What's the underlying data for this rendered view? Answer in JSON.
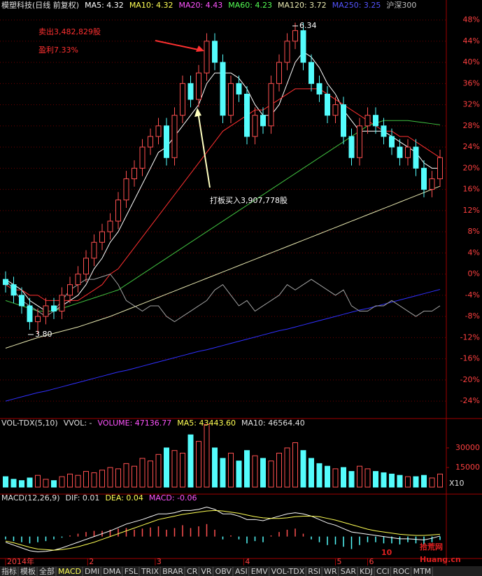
{
  "chart_data": [
    {
      "type": "candlestick",
      "header": [
        {
          "text": "模塑科技(日线 前复权)",
          "color": "#e0e0e0"
        },
        {
          "text": "MA5: 4.32",
          "color": "#ffffff"
        },
        {
          "text": "MA10: 4.32",
          "color": "#ffff54"
        },
        {
          "text": "MA20: 4.43",
          "color": "#ff54ff"
        },
        {
          "text": "MA60: 4.23",
          "color": "#54ff54"
        },
        {
          "text": "MA120: 3.72",
          "color": "#e8e8b0"
        },
        {
          "text": "MA250: 3.25",
          "color": "#5454ff"
        },
        {
          "text": "沪深300",
          "color": "#c0c0c0"
        }
      ],
      "ylim": [
        -26.5,
        49.4
      ],
      "yticks": [
        {
          "value": 48,
          "label": "48%"
        },
        {
          "value": 44,
          "label": "44%"
        },
        {
          "value": 40,
          "label": "40%"
        },
        {
          "value": 36,
          "label": "36%"
        },
        {
          "value": 32,
          "label": "32%"
        },
        {
          "value": 28,
          "label": "28%"
        },
        {
          "value": 24,
          "label": "24%"
        },
        {
          "value": 20,
          "label": "20%"
        },
        {
          "value": 16,
          "label": "16%"
        },
        {
          "value": 12,
          "label": "12%"
        },
        {
          "value": 8,
          "label": "8%"
        },
        {
          "value": 4,
          "label": "4%"
        },
        {
          "value": 0,
          "label": "0%"
        },
        {
          "value": -4,
          "label": "-4%"
        },
        {
          "value": -8,
          "label": "-8%"
        },
        {
          "value": -12,
          "label": "-12%"
        },
        {
          "value": -16,
          "label": "-16%"
        },
        {
          "value": -20,
          "label": "-20%"
        },
        {
          "value": -24,
          "label": "-24%"
        }
      ],
      "xticks": [
        {
          "value": 0,
          "label": "2014年"
        },
        {
          "value": 10.2,
          "label": "2"
        },
        {
          "value": 18.6,
          "label": "3"
        },
        {
          "value": 29.6,
          "label": "4"
        },
        {
          "value": 41,
          "label": "5"
        },
        {
          "value": 45,
          "label": "6"
        }
      ],
      "grid": true,
      "up_color": "#ff5050",
      "down_color": "#54fcfc",
      "open": [
        -1,
        -2,
        -4,
        -6,
        -9,
        -8,
        -6,
        -7,
        -4,
        -2,
        0,
        3,
        6,
        8,
        10,
        14,
        18,
        20,
        24,
        26,
        28,
        22,
        30,
        36,
        33,
        38,
        44,
        40,
        30,
        36,
        34,
        26,
        30,
        28,
        36,
        40,
        44,
        46,
        40,
        36,
        34,
        30,
        32,
        26,
        22,
        28,
        30,
        28,
        26,
        24,
        22,
        24,
        20,
        16,
        18
      ],
      "close": [
        -2,
        -4,
        -6,
        -9,
        -8,
        -6,
        -7,
        -4,
        -2,
        0,
        3,
        6,
        8,
        10,
        14,
        18,
        20,
        24,
        26,
        28,
        22,
        30,
        36,
        33,
        38,
        44,
        40,
        30,
        36,
        34,
        26,
        30,
        28,
        36,
        40,
        44,
        46,
        40,
        36,
        34,
        30,
        32,
        26,
        22,
        28,
        30,
        28,
        26,
        24,
        22,
        24,
        20,
        16,
        18,
        22
      ],
      "high": [
        0.5,
        -0.5,
        -2.5,
        -4.5,
        -6.5,
        -4.5,
        -4.5,
        -2.5,
        -0.5,
        1.5,
        4.5,
        7.5,
        9.5,
        11.5,
        15.5,
        19.5,
        21.5,
        25.5,
        27.5,
        29.5,
        29.5,
        31.5,
        37.5,
        37.5,
        39.5,
        45.5,
        45.5,
        41.5,
        37.5,
        37.5,
        35.5,
        31.5,
        31.5,
        37.5,
        41.5,
        45.5,
        47.5,
        47.5,
        41.5,
        37.5,
        35.5,
        33.5,
        33.5,
        27.5,
        29.5,
        31.5,
        31.5,
        29.5,
        27.5,
        25.5,
        25.5,
        25.5,
        21.5,
        19.5,
        23.5
      ],
      "low": [
        -3.5,
        -5.5,
        -7.5,
        -10.5,
        -11.4,
        -9.5,
        -8.5,
        -8.5,
        -5.5,
        -3.5,
        -1.5,
        1.5,
        4.5,
        6.5,
        8.5,
        12.5,
        16.5,
        18.5,
        22.5,
        24.5,
        20.5,
        20.5,
        28.5,
        31.5,
        31.5,
        36.5,
        38.5,
        28.5,
        28.5,
        32.5,
        24.5,
        24.5,
        26.5,
        26.5,
        34.5,
        38.5,
        42.5,
        38.5,
        34.5,
        32.5,
        28.5,
        28.5,
        24.5,
        20.5,
        20.5,
        26.5,
        26.5,
        24.5,
        22.5,
        20.5,
        20.5,
        18.5,
        14.5,
        14.5,
        16.5
      ],
      "lines": [
        {
          "color": "#ffffff",
          "values": [
            -1,
            -2,
            -3,
            -5,
            -6,
            -7,
            -7,
            -6,
            -5,
            -4,
            -2,
            1,
            3,
            6,
            8,
            11,
            14,
            17,
            20,
            23,
            24,
            26,
            28,
            30,
            32,
            36,
            38,
            38,
            38,
            37,
            35,
            32,
            30,
            30,
            32,
            36,
            40,
            42,
            41,
            39,
            36,
            34,
            31,
            29,
            27,
            27,
            27,
            27,
            26,
            25,
            24,
            23,
            21,
            20,
            20
          ]
        },
        {
          "color": "#ff3030",
          "values": [
            -2,
            -3,
            -3,
            -4,
            -4,
            -5,
            -5,
            -5,
            -5,
            -5,
            -4,
            -3,
            -2,
            0,
            1,
            3,
            5,
            7,
            9,
            11,
            13,
            15,
            17,
            19,
            21,
            23,
            25,
            27,
            28,
            29,
            30,
            31,
            31,
            32,
            33,
            34,
            35,
            35,
            35,
            35,
            34,
            33,
            32,
            31,
            30,
            29,
            28,
            27,
            27,
            26,
            26,
            25,
            24,
            23,
            22
          ]
        },
        {
          "color": "#40c040",
          "values": [
            -5,
            -5.5,
            -6,
            -6.5,
            -7,
            -7,
            -7,
            -6.5,
            -6,
            -5.5,
            -5,
            -4.5,
            -4,
            -3.5,
            -3,
            -2,
            -1,
            0,
            1,
            2,
            3,
            4,
            5,
            6,
            7,
            8,
            9,
            10,
            11,
            12,
            13,
            14,
            15,
            16,
            17,
            18,
            19,
            20,
            21,
            22,
            23,
            24,
            25,
            26,
            27,
            28,
            28.5,
            29,
            29,
            29,
            29,
            28.8,
            28.6,
            28.4,
            28.2
          ]
        },
        {
          "color": "#e8e8b0",
          "values": [
            -14,
            -13.5,
            -13,
            -12.5,
            -12,
            -11.6,
            -11.2,
            -10.8,
            -10.4,
            -10,
            -9.5,
            -9,
            -8.5,
            -8,
            -7.4,
            -6.8,
            -6.2,
            -5.6,
            -5,
            -4.4,
            -3.8,
            -3.2,
            -2.6,
            -2,
            -1.4,
            -0.8,
            -0.2,
            0.4,
            1,
            1.6,
            2.2,
            2.8,
            3.4,
            4,
            4.6,
            5.2,
            5.8,
            6.4,
            7,
            7.6,
            8.2,
            8.8,
            9.4,
            10,
            10.6,
            11.2,
            11.8,
            12.4,
            13,
            13.6,
            14.2,
            14.8,
            15.4,
            16,
            16.6
          ]
        },
        {
          "color": "#3030ff",
          "values": [
            -24,
            -23.6,
            -23.2,
            -22.8,
            -22.4,
            -22.1,
            -21.7,
            -21.3,
            -20.9,
            -20.5,
            -20.1,
            -19.7,
            -19.3,
            -18.9,
            -18.5,
            -18.2,
            -17.8,
            -17.4,
            -17,
            -16.6,
            -16.2,
            -15.8,
            -15.4,
            -15,
            -14.6,
            -14.3,
            -13.9,
            -13.5,
            -13.1,
            -12.7,
            -12.3,
            -11.9,
            -11.5,
            -11.1,
            -10.7,
            -10.4,
            -10,
            -9.6,
            -9.2,
            -8.8,
            -8.4,
            -8,
            -7.6,
            -7.2,
            -6.8,
            -6.5,
            -6.1,
            -5.7,
            -5.3,
            -4.9,
            -4.5,
            -4.1,
            -3.7,
            -3.3,
            -2.9
          ]
        },
        {
          "color": "#a0a0a0",
          "values": [
            -1,
            -3,
            -5,
            -6,
            -7,
            -8,
            -7,
            -5,
            -3,
            -2,
            -1,
            -1,
            -0.5,
            0,
            -2,
            -5,
            -6,
            -7,
            -6,
            -6,
            -8,
            -9,
            -8,
            -7,
            -6,
            -5,
            -3,
            -2,
            -4,
            -6,
            -5,
            -7,
            -6,
            -5,
            -4,
            -2,
            -3,
            -2,
            -1,
            -2,
            -3,
            -4,
            -3,
            -6,
            -7,
            -7,
            -6,
            -6,
            -5,
            -6,
            -7,
            -8,
            -7,
            -7,
            -6
          ]
        }
      ],
      "annotations": [
        {
          "text": "卖出3,482,829股",
          "color": "#ff3030"
        },
        {
          "text": "盈利7.33%",
          "color": "#ff3030"
        },
        {
          "text": "打板买入3,907,778股",
          "color": "#ffffff"
        },
        {
          "text": "6.34",
          "color": "#ffffff"
        },
        {
          "text": "3.80",
          "color": "#ffffff"
        }
      ]
    },
    {
      "type": "bar",
      "header": [
        {
          "text": "VOL-TDX(5,10)",
          "color": "#e0e0e0"
        },
        {
          "text": "VVOL: -",
          "color": "#e0e0e0"
        },
        {
          "text": "VOLUME: 47136.77",
          "color": "#ff54ff"
        },
        {
          "text": "MA5: 43443.60",
          "color": "#ffff54"
        },
        {
          "text": "MA10: 46564.40",
          "color": "#e0e0e0"
        }
      ],
      "ylim": [
        0,
        51400
      ],
      "yticks": [
        30000,
        15000
      ],
      "unit_label": "X10",
      "values": [
        8000,
        6000,
        5000,
        7000,
        9000,
        6000,
        5000,
        8000,
        10000,
        9000,
        12000,
        11000,
        13000,
        15000,
        14000,
        18000,
        16000,
        22000,
        20000,
        25000,
        30000,
        28000,
        26000,
        40000,
        35000,
        48000,
        30000,
        22000,
        26000,
        20000,
        28000,
        24000,
        22000,
        20000,
        26000,
        30000,
        34000,
        28000,
        22000,
        18000,
        16000,
        14000,
        15000,
        12000,
        16000,
        14000,
        12000,
        11000,
        10000,
        9000,
        8000,
        8000,
        9000,
        7000,
        10000
      ]
    },
    {
      "type": "macd",
      "header": [
        {
          "text": "MACD(12,26,9)",
          "color": "#e0e0e0"
        },
        {
          "text": "DIF: 0.01",
          "color": "#e0e0e0"
        },
        {
          "text": "DEA: 0.04",
          "color": "#ffff54"
        },
        {
          "text": "MACD: -0.06",
          "color": "#ff54ff"
        }
      ],
      "ylim": [
        -0.35,
        0.6
      ],
      "histogram": [
        -0.05,
        -0.08,
        -0.1,
        -0.12,
        -0.1,
        -0.08,
        -0.05,
        -0.02,
        0.02,
        0.05,
        0.08,
        0.1,
        0.1,
        0.12,
        0.14,
        0.15,
        0.12,
        0.14,
        0.16,
        0.18,
        0.12,
        0.15,
        0.2,
        0.15,
        0.18,
        0.22,
        0.12,
        -0.05,
        0.02,
        -0.05,
        -0.12,
        -0.08,
        -0.1,
        0.02,
        0.08,
        0.12,
        0.14,
        0.05,
        -0.05,
        -0.1,
        -0.15,
        -0.14,
        -0.18,
        -0.22,
        -0.15,
        -0.1,
        -0.1,
        -0.12,
        -0.12,
        -0.14,
        -0.1,
        -0.12,
        -0.15,
        -0.1,
        -0.06
      ],
      "dif": [
        -0.1,
        -0.15,
        -0.2,
        -0.25,
        -0.27,
        -0.26,
        -0.24,
        -0.2,
        -0.15,
        -0.1,
        -0.05,
        0,
        0.05,
        0.1,
        0.16,
        0.22,
        0.26,
        0.3,
        0.35,
        0.4,
        0.4,
        0.42,
        0.46,
        0.46,
        0.48,
        0.52,
        0.48,
        0.4,
        0.4,
        0.36,
        0.3,
        0.3,
        0.28,
        0.32,
        0.36,
        0.4,
        0.42,
        0.4,
        0.36,
        0.3,
        0.24,
        0.2,
        0.14,
        0.08,
        0.06,
        0.04,
        0.02,
        0,
        -0.02,
        -0.04,
        -0.04,
        -0.05,
        -0.06,
        -0.03,
        0.01
      ],
      "dea": [
        -0.08,
        -0.11,
        -0.15,
        -0.19,
        -0.22,
        -0.23,
        -0.24,
        -0.23,
        -0.21,
        -0.18,
        -0.14,
        -0.1,
        -0.05,
        0,
        0.05,
        0.1,
        0.15,
        0.2,
        0.25,
        0.3,
        0.33,
        0.36,
        0.39,
        0.41,
        0.43,
        0.45,
        0.46,
        0.45,
        0.43,
        0.41,
        0.38,
        0.35,
        0.33,
        0.32,
        0.32,
        0.33,
        0.35,
        0.36,
        0.36,
        0.35,
        0.32,
        0.29,
        0.25,
        0.21,
        0.17,
        0.13,
        0.1,
        0.08,
        0.06,
        0.04,
        0.03,
        0.02,
        0.02,
        0.03,
        0.04
      ]
    }
  ],
  "tabs": [
    "指标",
    "模板",
    "全部",
    "MACD",
    "DMI",
    "DMA",
    "FSL",
    "TRIX",
    "BRAR",
    "CR",
    "VR",
    "OBV",
    "ASI",
    "EMV",
    "VOL-TDX",
    "RSI",
    "WR",
    "SAR",
    "KDJ",
    "CCI",
    "ROC",
    "MTM"
  ],
  "active_tab": 3,
  "watermark": [
    "10",
    "拾荒网",
    "Huang.cn"
  ]
}
